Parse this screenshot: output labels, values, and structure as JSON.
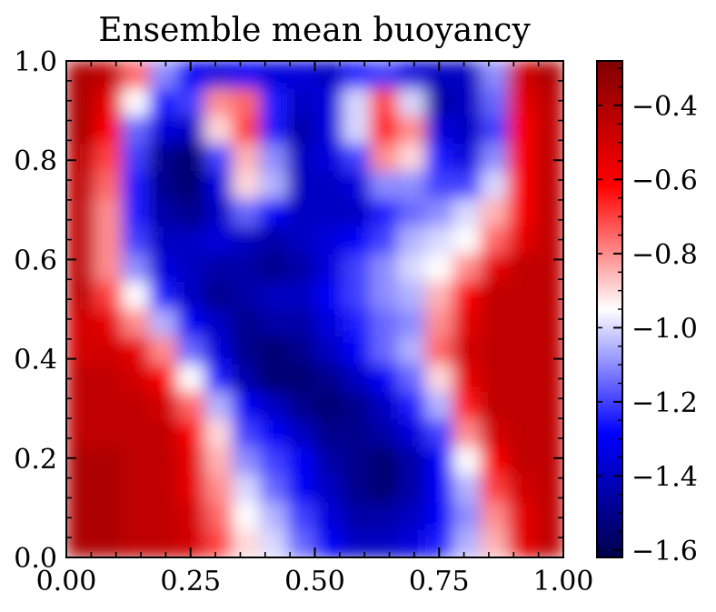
{
  "chart_data": {
    "type": "heatmap",
    "title": "Ensemble mean buoyancy",
    "xlabel": "",
    "ylabel": "",
    "xlim": [
      0.0,
      1.0
    ],
    "ylim": [
      0.0,
      1.0
    ],
    "x_ticks": [
      "0.00",
      "0.25",
      "0.50",
      "0.75",
      "1.00"
    ],
    "x_tick_values": [
      0.0,
      0.25,
      0.5,
      0.75,
      1.0
    ],
    "y_ticks": [
      "0.0",
      "0.2",
      "0.4",
      "0.6",
      "0.8",
      "1.0"
    ],
    "y_tick_values": [
      0.0,
      0.2,
      0.4,
      0.6,
      0.8,
      1.0
    ],
    "colorbar": {
      "colormap": "seismic",
      "vmin": -1.62,
      "vmax": -0.28,
      "ticks": [
        "−1.6",
        "−1.4",
        "−1.2",
        "−1.0",
        "−0.8",
        "−0.6",
        "−0.4"
      ],
      "tick_values": [
        -1.6,
        -1.4,
        -1.2,
        -1.0,
        -0.8,
        -0.6,
        -0.4
      ],
      "colors": [
        "#00004c",
        "#0000ff",
        "#ffffff",
        "#ff0000",
        "#800000"
      ]
    },
    "field": {
      "grid": [
        18,
        18
      ],
      "row_order": "top-to-bottom (y from 1.0 to 0.0)",
      "values": [
        [
          -0.4,
          -0.45,
          -0.75,
          -1.1,
          -1.3,
          -1.35,
          -1.3,
          -1.35,
          -1.35,
          -1.4,
          -1.25,
          -1.2,
          -1.35,
          -1.4,
          -1.4,
          -1.1,
          -0.5,
          -0.4
        ],
        [
          -0.4,
          -0.55,
          -0.95,
          -1.25,
          -1.2,
          -0.8,
          -0.75,
          -1.25,
          -1.4,
          -1.35,
          -1.0,
          -0.7,
          -1.0,
          -1.45,
          -1.4,
          -1.15,
          -0.55,
          -0.45
        ],
        [
          -0.4,
          -0.6,
          -1.15,
          -1.35,
          -1.4,
          -0.9,
          -0.7,
          -1.25,
          -1.45,
          -1.35,
          -1.0,
          -0.65,
          -0.8,
          -1.35,
          -1.4,
          -1.2,
          -0.6,
          -0.45
        ],
        [
          -0.45,
          -0.7,
          -1.2,
          -1.5,
          -1.55,
          -1.2,
          -0.85,
          -1.1,
          -1.4,
          -1.35,
          -1.2,
          -0.8,
          -0.9,
          -1.25,
          -1.35,
          -1.1,
          -0.6,
          -0.45
        ],
        [
          -0.45,
          -0.75,
          -1.25,
          -1.5,
          -1.55,
          -1.35,
          -0.9,
          -1.05,
          -1.4,
          -1.4,
          -1.35,
          -1.1,
          -1.1,
          -1.2,
          -1.2,
          -1.0,
          -0.6,
          -0.45
        ],
        [
          -0.45,
          -0.8,
          -1.25,
          -1.45,
          -1.5,
          -1.4,
          -1.15,
          -1.3,
          -1.4,
          -1.4,
          -1.4,
          -1.25,
          -1.15,
          -1.1,
          -1.0,
          -0.85,
          -0.6,
          -0.45
        ],
        [
          -0.45,
          -0.8,
          -1.2,
          -1.4,
          -1.4,
          -1.35,
          -1.4,
          -1.45,
          -1.4,
          -1.35,
          -1.3,
          -1.2,
          -1.05,
          -1.0,
          -0.95,
          -0.75,
          -0.55,
          -0.45
        ],
        [
          -0.45,
          -0.8,
          -1.1,
          -1.35,
          -1.4,
          -1.45,
          -1.45,
          -1.5,
          -1.45,
          -1.35,
          -1.2,
          -1.1,
          -1.0,
          -0.95,
          -0.8,
          -0.55,
          -0.45,
          -0.45
        ],
        [
          -0.45,
          -0.7,
          -0.95,
          -1.25,
          -1.4,
          -1.5,
          -1.45,
          -1.4,
          -1.4,
          -1.3,
          -1.2,
          -1.1,
          -1.05,
          -0.85,
          -0.6,
          -0.45,
          -0.45,
          -0.45
        ],
        [
          -0.5,
          -0.55,
          -0.8,
          -1.05,
          -1.3,
          -1.4,
          -1.5,
          -1.45,
          -1.45,
          -1.35,
          -1.25,
          -1.15,
          -1.1,
          -0.8,
          -0.55,
          -0.45,
          -0.45,
          -0.45
        ],
        [
          -0.5,
          -0.5,
          -0.55,
          -0.8,
          -1.15,
          -1.35,
          -1.5,
          -1.55,
          -1.5,
          -1.4,
          -1.3,
          -1.15,
          -1.05,
          -0.75,
          -0.5,
          -0.45,
          -0.45,
          -0.45
        ],
        [
          -0.45,
          -0.45,
          -0.5,
          -0.6,
          -0.95,
          -1.25,
          -1.45,
          -1.55,
          -1.55,
          -1.5,
          -1.4,
          -1.3,
          -1.15,
          -0.9,
          -0.55,
          -0.45,
          -0.45,
          -0.45
        ],
        [
          -0.45,
          -0.45,
          -0.45,
          -0.5,
          -0.75,
          -1.05,
          -1.3,
          -1.4,
          -1.5,
          -1.55,
          -1.5,
          -1.4,
          -1.25,
          -1.05,
          -0.65,
          -0.45,
          -0.45,
          -0.45
        ],
        [
          -0.45,
          -0.45,
          -0.45,
          -0.45,
          -0.6,
          -0.9,
          -1.2,
          -1.3,
          -1.4,
          -1.5,
          -1.5,
          -1.45,
          -1.35,
          -1.2,
          -0.8,
          -0.5,
          -0.45,
          -0.45
        ],
        [
          -0.4,
          -0.4,
          -0.45,
          -0.45,
          -0.55,
          -0.85,
          -1.1,
          -1.2,
          -1.3,
          -1.45,
          -1.5,
          -1.55,
          -1.45,
          -1.3,
          -0.95,
          -0.6,
          -0.45,
          -0.45
        ],
        [
          -0.4,
          -0.4,
          -0.45,
          -0.45,
          -0.55,
          -0.8,
          -1.0,
          -1.15,
          -1.3,
          -1.4,
          -1.5,
          -1.55,
          -1.45,
          -1.3,
          -1.05,
          -0.7,
          -0.5,
          -0.45
        ],
        [
          -0.4,
          -0.4,
          -0.45,
          -0.45,
          -0.5,
          -0.75,
          -0.95,
          -1.05,
          -1.2,
          -1.35,
          -1.45,
          -1.45,
          -1.4,
          -1.3,
          -1.1,
          -0.8,
          -0.55,
          -0.45
        ],
        [
          -0.4,
          -0.4,
          -0.45,
          -0.45,
          -0.5,
          -0.7,
          -0.9,
          -1.0,
          -1.15,
          -1.3,
          -1.4,
          -1.4,
          -1.35,
          -1.25,
          -1.05,
          -0.85,
          -0.55,
          -0.45
        ]
      ]
    }
  }
}
